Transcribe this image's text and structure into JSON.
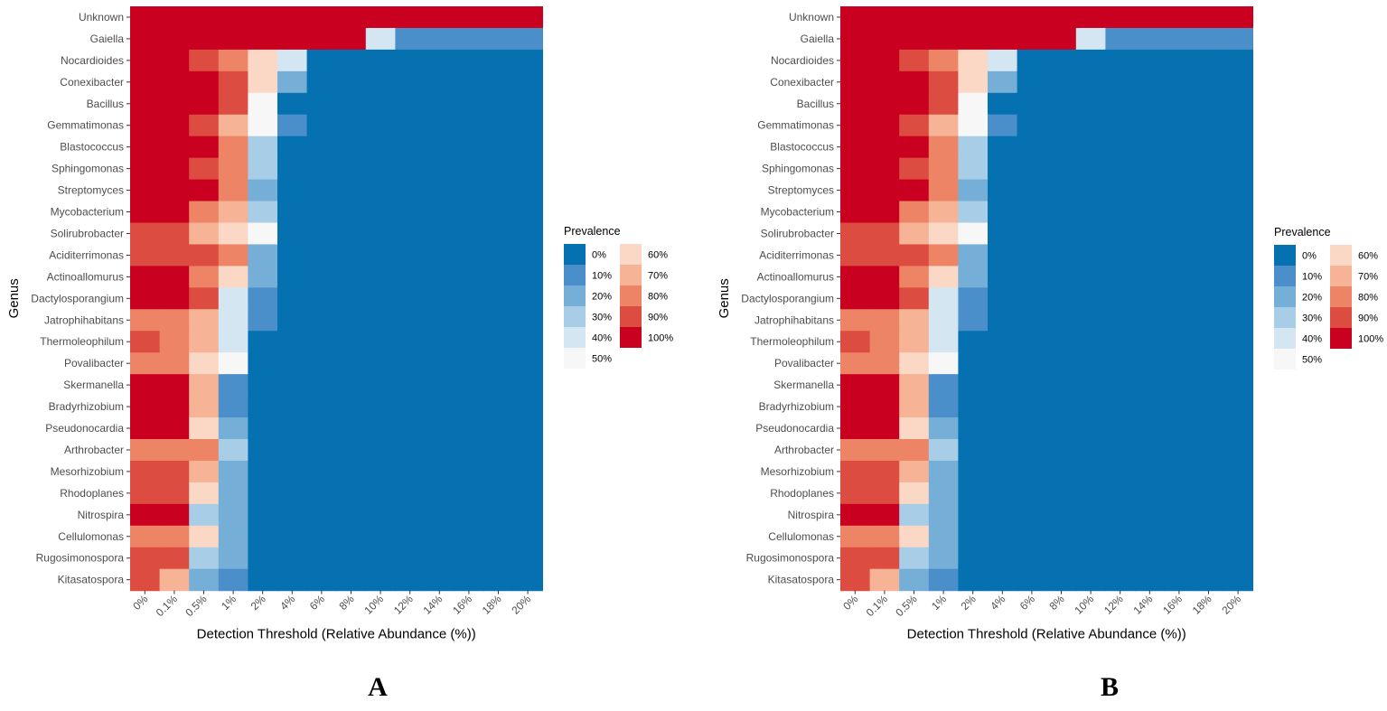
{
  "chart_data": [
    {
      "type": "heatmap",
      "panel_label": "A",
      "xlabel": "Detection Threshold (Relative Abundance (%))",
      "ylabel": "Genus",
      "x_categories": [
        "0%",
        "0.1%",
        "0.5%",
        "1%",
        "2%",
        "4%",
        "6%",
        "8%",
        "10%",
        "12%",
        "14%",
        "16%",
        "18%",
        "20%"
      ],
      "y_categories": [
        "Unknown",
        "Gaiella",
        "Nocardioides",
        "Conexibacter",
        "Bacillus",
        "Gemmatimonas",
        "Blastococcus",
        "Sphingomonas",
        "Streptomyces",
        "Mycobacterium",
        "Solirubrobacter",
        "Aciditerrimonas",
        "Actinoallomurus",
        "Dactylosporangium",
        "Jatrophihabitans",
        "Thermoleophilum",
        "Povalibacter",
        "Skermanella",
        "Bradyrhizobium",
        "Pseudonocardia",
        "Arthrobacter",
        "Mesorhizobium",
        "Rhodoplanes",
        "Nitrospira",
        "Cellulomonas",
        "Rugosimonospora",
        "Kitasatospora"
      ],
      "values": [
        [
          100,
          100,
          100,
          100,
          100,
          100,
          100,
          100,
          100,
          100,
          100,
          100,
          100,
          100
        ],
        [
          100,
          100,
          100,
          100,
          100,
          100,
          100,
          100,
          40,
          10,
          10,
          10,
          10,
          10
        ],
        [
          100,
          100,
          90,
          80,
          60,
          40,
          0,
          0,
          0,
          0,
          0,
          0,
          0,
          0
        ],
        [
          100,
          100,
          100,
          90,
          60,
          20,
          0,
          0,
          0,
          0,
          0,
          0,
          0,
          0
        ],
        [
          100,
          100,
          100,
          90,
          50,
          0,
          0,
          0,
          0,
          0,
          0,
          0,
          0,
          0
        ],
        [
          100,
          100,
          90,
          70,
          50,
          10,
          0,
          0,
          0,
          0,
          0,
          0,
          0,
          0
        ],
        [
          100,
          100,
          100,
          80,
          30,
          0,
          0,
          0,
          0,
          0,
          0,
          0,
          0,
          0
        ],
        [
          100,
          100,
          90,
          80,
          30,
          0,
          0,
          0,
          0,
          0,
          0,
          0,
          0,
          0
        ],
        [
          100,
          100,
          100,
          80,
          20,
          0,
          0,
          0,
          0,
          0,
          0,
          0,
          0,
          0
        ],
        [
          100,
          100,
          80,
          70,
          30,
          0,
          0,
          0,
          0,
          0,
          0,
          0,
          0,
          0
        ],
        [
          90,
          90,
          70,
          60,
          50,
          0,
          0,
          0,
          0,
          0,
          0,
          0,
          0,
          0
        ],
        [
          90,
          90,
          90,
          80,
          20,
          0,
          0,
          0,
          0,
          0,
          0,
          0,
          0,
          0
        ],
        [
          100,
          100,
          80,
          60,
          20,
          0,
          0,
          0,
          0,
          0,
          0,
          0,
          0,
          0
        ],
        [
          100,
          100,
          90,
          40,
          10,
          0,
          0,
          0,
          0,
          0,
          0,
          0,
          0,
          0
        ],
        [
          80,
          80,
          70,
          40,
          10,
          0,
          0,
          0,
          0,
          0,
          0,
          0,
          0,
          0
        ],
        [
          90,
          80,
          70,
          40,
          0,
          0,
          0,
          0,
          0,
          0,
          0,
          0,
          0,
          0
        ],
        [
          80,
          80,
          60,
          50,
          0,
          0,
          0,
          0,
          0,
          0,
          0,
          0,
          0,
          0
        ],
        [
          100,
          100,
          70,
          10,
          0,
          0,
          0,
          0,
          0,
          0,
          0,
          0,
          0,
          0
        ],
        [
          100,
          100,
          70,
          10,
          0,
          0,
          0,
          0,
          0,
          0,
          0,
          0,
          0,
          0
        ],
        [
          100,
          100,
          60,
          20,
          0,
          0,
          0,
          0,
          0,
          0,
          0,
          0,
          0,
          0
        ],
        [
          80,
          80,
          80,
          30,
          0,
          0,
          0,
          0,
          0,
          0,
          0,
          0,
          0,
          0
        ],
        [
          90,
          90,
          70,
          20,
          0,
          0,
          0,
          0,
          0,
          0,
          0,
          0,
          0,
          0
        ],
        [
          90,
          90,
          60,
          20,
          0,
          0,
          0,
          0,
          0,
          0,
          0,
          0,
          0,
          0
        ],
        [
          100,
          100,
          30,
          20,
          0,
          0,
          0,
          0,
          0,
          0,
          0,
          0,
          0,
          0
        ],
        [
          80,
          80,
          60,
          20,
          0,
          0,
          0,
          0,
          0,
          0,
          0,
          0,
          0,
          0
        ],
        [
          90,
          90,
          30,
          20,
          0,
          0,
          0,
          0,
          0,
          0,
          0,
          0,
          0,
          0
        ],
        [
          90,
          70,
          20,
          10,
          0,
          0,
          0,
          0,
          0,
          0,
          0,
          0,
          0,
          0
        ]
      ],
      "legend": {
        "title": "Prevalence",
        "entries": [
          {
            "label": "0%",
            "value": 0
          },
          {
            "label": "10%",
            "value": 10
          },
          {
            "label": "20%",
            "value": 20
          },
          {
            "label": "30%",
            "value": 30
          },
          {
            "label": "40%",
            "value": 40
          },
          {
            "label": "50%",
            "value": 50
          },
          {
            "label": "60%",
            "value": 60
          },
          {
            "label": "70%",
            "value": 70
          },
          {
            "label": "80%",
            "value": 80
          },
          {
            "label": "90%",
            "value": 90
          },
          {
            "label": "100%",
            "value": 100
          }
        ]
      }
    },
    {
      "type": "heatmap",
      "panel_label": "B",
      "xlabel": "Detection Threshold (Relative Abundance (%))",
      "ylabel": "Genus",
      "x_categories": [
        "0%",
        "0.1%",
        "0.5%",
        "1%",
        "2%",
        "4%",
        "6%",
        "8%",
        "10%",
        "12%",
        "14%",
        "16%",
        "18%",
        "20%"
      ],
      "y_categories": [
        "Unknown",
        "Gaiella",
        "Nocardioides",
        "Conexibacter",
        "Bacillus",
        "Gemmatimonas",
        "Blastococcus",
        "Sphingomonas",
        "Streptomyces",
        "Mycobacterium",
        "Solirubrobacter",
        "Aciditerrimonas",
        "Actinoallomurus",
        "Dactylosporangium",
        "Jatrophihabitans",
        "Thermoleophilum",
        "Povalibacter",
        "Skermanella",
        "Bradyrhizobium",
        "Pseudonocardia",
        "Arthrobacter",
        "Mesorhizobium",
        "Rhodoplanes",
        "Nitrospira",
        "Cellulomonas",
        "Rugosimonospora",
        "Kitasatospora"
      ],
      "values": [
        [
          100,
          100,
          100,
          100,
          100,
          100,
          100,
          100,
          100,
          100,
          100,
          100,
          100,
          100
        ],
        [
          100,
          100,
          100,
          100,
          100,
          100,
          100,
          100,
          40,
          10,
          10,
          10,
          10,
          10
        ],
        [
          100,
          100,
          90,
          80,
          60,
          40,
          0,
          0,
          0,
          0,
          0,
          0,
          0,
          0
        ],
        [
          100,
          100,
          100,
          90,
          60,
          20,
          0,
          0,
          0,
          0,
          0,
          0,
          0,
          0
        ],
        [
          100,
          100,
          100,
          90,
          50,
          0,
          0,
          0,
          0,
          0,
          0,
          0,
          0,
          0
        ],
        [
          100,
          100,
          90,
          70,
          50,
          10,
          0,
          0,
          0,
          0,
          0,
          0,
          0,
          0
        ],
        [
          100,
          100,
          100,
          80,
          30,
          0,
          0,
          0,
          0,
          0,
          0,
          0,
          0,
          0
        ],
        [
          100,
          100,
          90,
          80,
          30,
          0,
          0,
          0,
          0,
          0,
          0,
          0,
          0,
          0
        ],
        [
          100,
          100,
          100,
          80,
          20,
          0,
          0,
          0,
          0,
          0,
          0,
          0,
          0,
          0
        ],
        [
          100,
          100,
          80,
          70,
          30,
          0,
          0,
          0,
          0,
          0,
          0,
          0,
          0,
          0
        ],
        [
          90,
          90,
          70,
          60,
          50,
          0,
          0,
          0,
          0,
          0,
          0,
          0,
          0,
          0
        ],
        [
          90,
          90,
          90,
          80,
          20,
          0,
          0,
          0,
          0,
          0,
          0,
          0,
          0,
          0
        ],
        [
          100,
          100,
          80,
          60,
          20,
          0,
          0,
          0,
          0,
          0,
          0,
          0,
          0,
          0
        ],
        [
          100,
          100,
          90,
          40,
          10,
          0,
          0,
          0,
          0,
          0,
          0,
          0,
          0,
          0
        ],
        [
          80,
          80,
          70,
          40,
          10,
          0,
          0,
          0,
          0,
          0,
          0,
          0,
          0,
          0
        ],
        [
          90,
          80,
          70,
          40,
          0,
          0,
          0,
          0,
          0,
          0,
          0,
          0,
          0,
          0
        ],
        [
          80,
          80,
          60,
          50,
          0,
          0,
          0,
          0,
          0,
          0,
          0,
          0,
          0,
          0
        ],
        [
          100,
          100,
          70,
          10,
          0,
          0,
          0,
          0,
          0,
          0,
          0,
          0,
          0,
          0
        ],
        [
          100,
          100,
          70,
          10,
          0,
          0,
          0,
          0,
          0,
          0,
          0,
          0,
          0,
          0
        ],
        [
          100,
          100,
          60,
          20,
          0,
          0,
          0,
          0,
          0,
          0,
          0,
          0,
          0,
          0
        ],
        [
          80,
          80,
          80,
          30,
          0,
          0,
          0,
          0,
          0,
          0,
          0,
          0,
          0,
          0
        ],
        [
          90,
          90,
          70,
          20,
          0,
          0,
          0,
          0,
          0,
          0,
          0,
          0,
          0,
          0
        ],
        [
          90,
          90,
          60,
          20,
          0,
          0,
          0,
          0,
          0,
          0,
          0,
          0,
          0,
          0
        ],
        [
          100,
          100,
          30,
          20,
          0,
          0,
          0,
          0,
          0,
          0,
          0,
          0,
          0,
          0
        ],
        [
          80,
          80,
          60,
          20,
          0,
          0,
          0,
          0,
          0,
          0,
          0,
          0,
          0,
          0
        ],
        [
          90,
          90,
          30,
          20,
          0,
          0,
          0,
          0,
          0,
          0,
          0,
          0,
          0,
          0
        ],
        [
          90,
          70,
          20,
          10,
          0,
          0,
          0,
          0,
          0,
          0,
          0,
          0,
          0,
          0
        ]
      ],
      "legend": {
        "title": "Prevalence",
        "entries": [
          {
            "label": "0%",
            "value": 0
          },
          {
            "label": "10%",
            "value": 10
          },
          {
            "label": "20%",
            "value": 20
          },
          {
            "label": "30%",
            "value": 30
          },
          {
            "label": "40%",
            "value": 40
          },
          {
            "label": "50%",
            "value": 50
          },
          {
            "label": "60%",
            "value": 60
          },
          {
            "label": "70%",
            "value": 70
          },
          {
            "label": "80%",
            "value": 80
          },
          {
            "label": "90%",
            "value": 90
          },
          {
            "label": "100%",
            "value": 100
          }
        ]
      }
    }
  ],
  "palette": {
    "0": "#0571b0",
    "10": "#4a8fc9",
    "20": "#75aed6",
    "30": "#a8cde6",
    "40": "#d4e6f1",
    "50": "#f7f7f7",
    "60": "#fbd7c6",
    "70": "#f6b395",
    "80": "#ee8466",
    "90": "#dc4c40",
    "100": "#ca0020"
  }
}
